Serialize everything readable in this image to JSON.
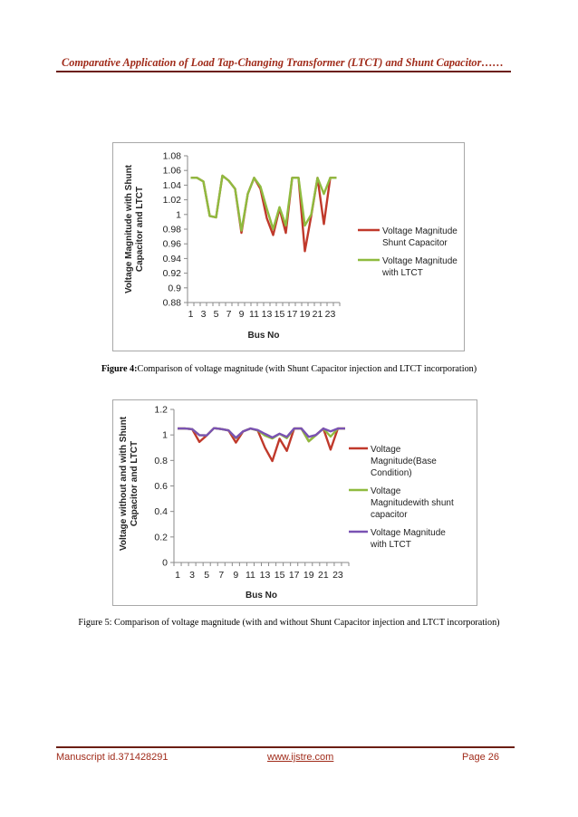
{
  "page": {
    "header": "Comparative Application of Load Tap-Changing Transformer (LTCT) and Shunt Capacitor……",
    "footer": {
      "manuscript": "Manuscript id.371428291",
      "website": "www.ijstre.com",
      "page": "Page 26"
    }
  },
  "figure4": {
    "caption_bold": "Figure 4:",
    "caption_text": "Comparison of voltage magnitude (with Shunt Capacitor injection and LTCT incorporation)"
  },
  "figure5": {
    "caption": "Figure 5: Comparison of voltage magnitude (with and without Shunt Capacitor injection and LTCT incorporation)"
  },
  "chart_data": [
    {
      "type": "line",
      "title": "",
      "xlabel": "Bus No",
      "ylabel_lines": [
        "Voltage Magnitude with Shunt",
        "Capacitor and LTCT"
      ],
      "x": [
        1,
        2,
        3,
        4,
        5,
        6,
        7,
        8,
        9,
        10,
        11,
        12,
        13,
        14,
        15,
        16,
        17,
        18,
        19,
        20,
        21,
        22,
        23,
        24
      ],
      "x_tick_labels": [
        "1",
        "3",
        "5",
        "7",
        "9",
        "11",
        "13",
        "15",
        "17",
        "19",
        "21",
        "23"
      ],
      "ylim": [
        0.88,
        1.08
      ],
      "y_ticks": [
        "0.88",
        "0.9",
        "0.92",
        "0.94",
        "0.96",
        "0.98",
        "1",
        "1.02",
        "1.04",
        "1.06",
        "1.08"
      ],
      "legend_position": "right",
      "series": [
        {
          "name_lines": [
            "Voltage Magnitude",
            "Shunt Capacitor"
          ],
          "color": "#c0392b",
          "values": [
            1.05,
            1.05,
            1.045,
            0.998,
            0.996,
            1.053,
            1.046,
            1.035,
            0.975,
            1.028,
            1.05,
            1.035,
            0.995,
            0.972,
            1.008,
            0.975,
            1.05,
            1.05,
            0.95,
            0.998,
            1.05,
            0.987,
            1.05,
            1.05
          ]
        },
        {
          "name_lines": [
            "Voltage Magnitude",
            "with LTCT"
          ],
          "color": "#8fbb3f",
          "values": [
            1.05,
            1.05,
            1.045,
            0.998,
            0.996,
            1.053,
            1.046,
            1.035,
            0.978,
            1.028,
            1.05,
            1.038,
            1.008,
            0.98,
            1.01,
            0.985,
            1.05,
            1.05,
            0.985,
            1.0,
            1.05,
            1.028,
            1.05,
            1.05
          ]
        }
      ]
    },
    {
      "type": "line",
      "title": "",
      "xlabel": "Bus No",
      "ylabel_lines": [
        "Voltage without and with Shunt",
        "Capacitor and LTCT"
      ],
      "x": [
        1,
        2,
        3,
        4,
        5,
        6,
        7,
        8,
        9,
        10,
        11,
        12,
        13,
        14,
        15,
        16,
        17,
        18,
        19,
        20,
        21,
        22,
        23,
        24
      ],
      "x_tick_labels": [
        "1",
        "3",
        "5",
        "7",
        "9",
        "11",
        "13",
        "15",
        "17",
        "19",
        "21",
        "23"
      ],
      "ylim": [
        0,
        1.2
      ],
      "y_ticks": [
        "0",
        "0.2",
        "0.4",
        "0.6",
        "0.8",
        "1",
        "1.2"
      ],
      "legend_position": "right",
      "series": [
        {
          "name_lines": [
            "Voltage",
            "Magnitude(Base",
            "Condition)"
          ],
          "color": "#c0392b",
          "values": [
            1.05,
            1.05,
            1.045,
            0.945,
            0.996,
            1.053,
            1.046,
            1.035,
            0.94,
            1.028,
            1.05,
            1.035,
            0.9,
            0.795,
            0.97,
            0.875,
            1.05,
            1.05,
            0.95,
            1.0,
            1.05,
            0.885,
            1.05,
            1.05
          ]
        },
        {
          "name_lines": [
            "Voltage",
            "Magnitudewith shunt",
            "capacitor"
          ],
          "color": "#8fbb3f",
          "values": [
            1.05,
            1.05,
            1.045,
            0.998,
            0.996,
            1.053,
            1.046,
            1.035,
            0.975,
            1.028,
            1.05,
            1.035,
            0.995,
            0.972,
            1.008,
            0.975,
            1.05,
            1.05,
            0.95,
            0.998,
            1.05,
            0.987,
            1.05,
            1.05
          ]
        },
        {
          "name_lines": [
            "Voltage Magnitude",
            "with LTCT"
          ],
          "color": "#7a52b3",
          "values": [
            1.05,
            1.05,
            1.045,
            0.998,
            0.996,
            1.053,
            1.046,
            1.035,
            0.978,
            1.028,
            1.05,
            1.038,
            1.008,
            0.98,
            1.01,
            0.985,
            1.05,
            1.05,
            0.985,
            1.0,
            1.05,
            1.028,
            1.05,
            1.05
          ]
        }
      ]
    }
  ]
}
